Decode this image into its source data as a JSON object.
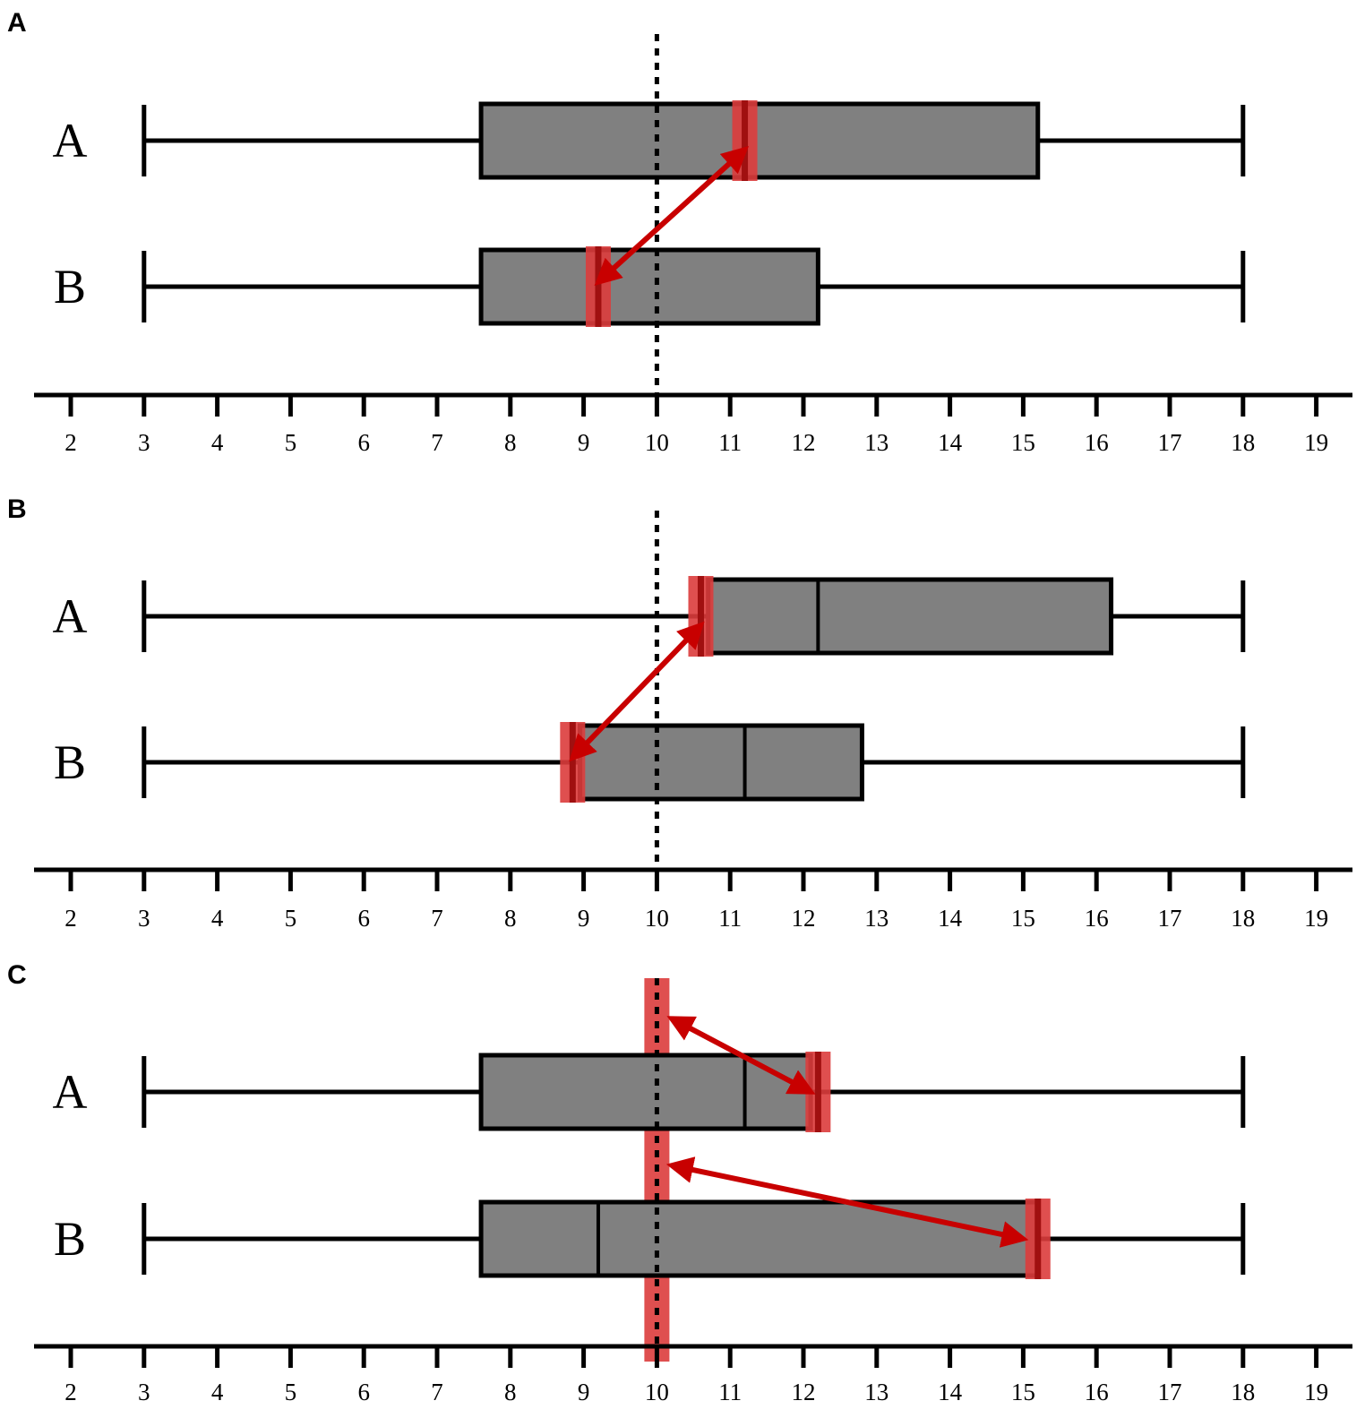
{
  "colors": {
    "box_fill": "#808080",
    "outline": "#000000",
    "highlight": "#dc3c3c",
    "highlight_dark": "#a01010",
    "arrow": "#c80000"
  },
  "chart_data": [
    {
      "type": "boxplot",
      "panel": "A",
      "x_ticks": [
        2,
        3,
        4,
        5,
        6,
        7,
        8,
        9,
        10,
        11,
        12,
        13,
        14,
        15,
        16,
        17,
        18,
        19
      ],
      "xlim": [
        1.5,
        19.5
      ],
      "reference_line": 10,
      "boxes": [
        {
          "label": "A",
          "min": 3,
          "q1": 7.6,
          "median": 11.2,
          "q3": 15.2,
          "max": 18
        },
        {
          "label": "B",
          "min": 3,
          "q1": 7.6,
          "median": 9.2,
          "q3": 12.2,
          "max": 18
        }
      ],
      "highlights": [
        {
          "row": 0,
          "x": 11.2,
          "core": true
        },
        {
          "row": 1,
          "x": 9.2,
          "core": true
        }
      ],
      "arrows": [
        {
          "from": {
            "row": 0,
            "x": 11.2
          },
          "to": {
            "row": 1,
            "x": 9.2
          }
        }
      ]
    },
    {
      "type": "boxplot",
      "panel": "B",
      "x_ticks": [
        2,
        3,
        4,
        5,
        6,
        7,
        8,
        9,
        10,
        11,
        12,
        13,
        14,
        15,
        16,
        17,
        18,
        19
      ],
      "xlim": [
        1.5,
        19.5
      ],
      "reference_line": 10,
      "boxes": [
        {
          "label": "A",
          "min": 3,
          "q1": 10.7,
          "median": 12.2,
          "q3": 16.2,
          "max": 18
        },
        {
          "label": "B",
          "min": 3,
          "q1": 8.95,
          "median": 11.2,
          "q3": 12.8,
          "max": 18
        }
      ],
      "highlights": [
        {
          "row": 0,
          "x": 10.6,
          "core": true
        },
        {
          "row": 1,
          "x": 8.85,
          "core": true
        }
      ],
      "arrows": [
        {
          "from": {
            "row": 0,
            "x": 10.6
          },
          "to": {
            "row": 1,
            "x": 8.85
          }
        }
      ]
    },
    {
      "type": "boxplot",
      "panel": "C",
      "x_ticks": [
        2,
        3,
        4,
        5,
        6,
        7,
        8,
        9,
        10,
        11,
        12,
        13,
        14,
        15,
        16,
        17,
        18,
        19
      ],
      "xlim": [
        1.5,
        19.5
      ],
      "reference_line": 10,
      "boxes": [
        {
          "label": "A",
          "min": 3,
          "q1": 7.6,
          "median": 11.2,
          "q3": 12.1,
          "max": 18
        },
        {
          "label": "B",
          "min": 3,
          "q1": 7.6,
          "median": 9.2,
          "q3": 15.2,
          "max": 18
        }
      ],
      "highlights": [
        {
          "row": 0,
          "x": 12.2,
          "core": true
        },
        {
          "row": 1,
          "x": 15.2,
          "core": true
        }
      ],
      "reference_band": true,
      "arrows": [
        {
          "from": {
            "row": -0.5,
            "x": 10.2
          },
          "to": {
            "row": 0,
            "x": 12.1
          }
        },
        {
          "from": {
            "row": 0.5,
            "x": 10.2
          },
          "to": {
            "row": 1,
            "x": 15.0
          }
        }
      ]
    }
  ]
}
